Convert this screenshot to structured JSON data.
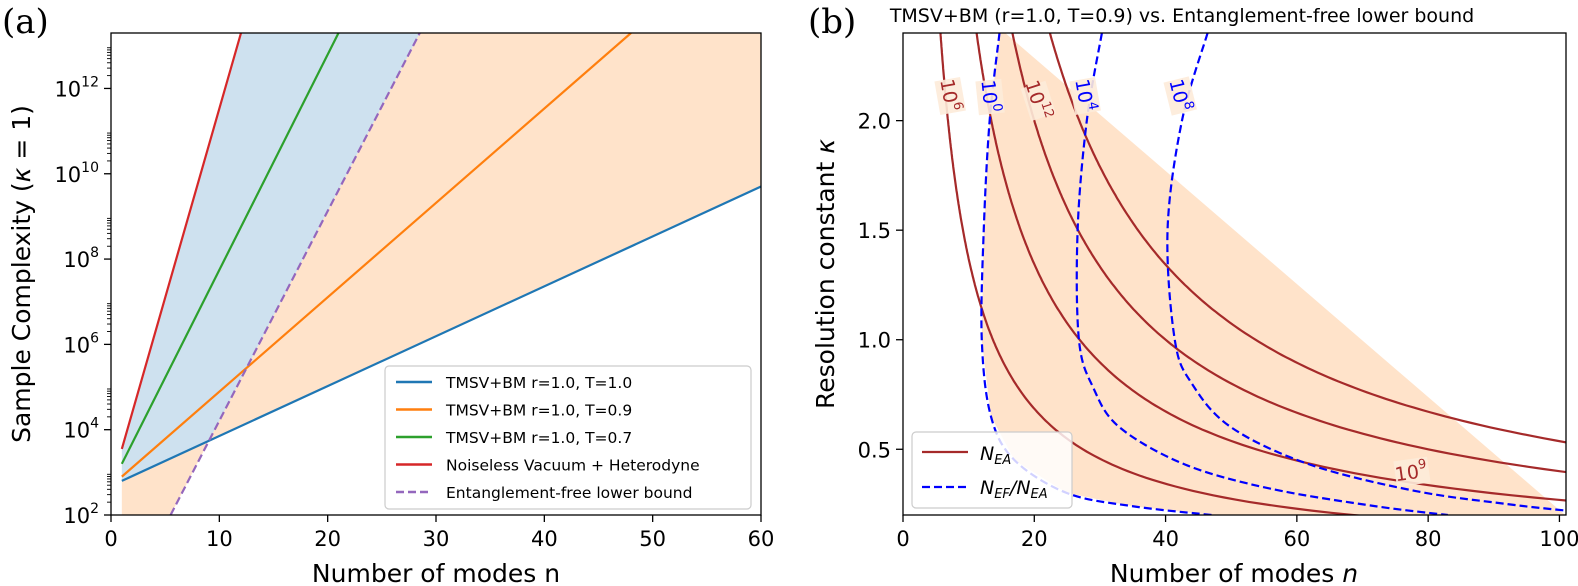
{
  "chart_data": [
    {
      "type": "line",
      "panel_label": "(a)",
      "title": "",
      "xlabel": "Number of modes n",
      "ylabel": "Sample Complexity (κ = 1)",
      "ylabel_main": "Sample Complexity (",
      "ylabel_kappa": "κ",
      "ylabel_tail": " = 1)",
      "yscale": "log",
      "xlim": [
        0,
        60
      ],
      "ylim_log10": [
        2,
        13.3
      ],
      "x_ticks": [
        0,
        10,
        20,
        30,
        40,
        50,
        60
      ],
      "x_tick_labels": [
        "0",
        "10",
        "20",
        "30",
        "40",
        "50",
        "60"
      ],
      "y_ticks_log10": [
        2,
        4,
        6,
        8,
        10,
        12
      ],
      "y_tick_base": "10",
      "y_tick_exps": [
        "2",
        "4",
        "6",
        "8",
        "10",
        "12"
      ],
      "series": [
        {
          "name": "TMSV+BM r=1.0, T=1.0",
          "color": "#1f77b4",
          "dash": false,
          "x": [
            1,
            60
          ],
          "log10_y": [
            2.8,
            9.7
          ]
        },
        {
          "name": "TMSV+BM r=1.0, T=0.9",
          "color": "#ff7f0e",
          "dash": false,
          "x": [
            1,
            48
          ],
          "log10_y": [
            2.9,
            13.3
          ]
        },
        {
          "name": "TMSV+BM r=1.0, T=0.7",
          "color": "#2ca02c",
          "dash": false,
          "x": [
            1,
            21
          ],
          "log10_y": [
            3.2,
            13.3
          ]
        },
        {
          "name": "Noiseless Vacuum + Heterodyne",
          "color": "#d62728",
          "dash": true,
          "x": [
            1,
            12
          ],
          "log10_y": [
            3.55,
            13.3
          ]
        },
        {
          "name": "Entanglement-free lower bound",
          "color": "#9467bd",
          "dash": true,
          "x": [
            5.5,
            28.5
          ],
          "log10_y": [
            2.0,
            13.3
          ]
        }
      ],
      "shaded_regions": [
        {
          "name": "entanglement-advantage region",
          "color": "#1f77b4",
          "opacity": 0.22
        },
        {
          "name": "entanglement-free region",
          "color": "#ff7f0e",
          "opacity": 0.22
        }
      ],
      "legend_position": "lower right"
    },
    {
      "type": "contour",
      "panel_label": "(b)",
      "title": "TMSV+BM (r=1.0, T=0.9) vs. Entanglement-free lower bound",
      "xlabel": "Number of modes n",
      "xlabel_main": "Number of modes ",
      "xlabel_var": "n",
      "ylabel": "Resolution constant κ",
      "ylabel_main": "Resolution constant ",
      "ylabel_var": "κ",
      "xlim": [
        0,
        101
      ],
      "ylim": [
        0.2,
        2.4
      ],
      "x_ticks": [
        0,
        20,
        40,
        60,
        80,
        100
      ],
      "x_tick_labels": [
        "0",
        "20",
        "40",
        "60",
        "80",
        "100"
      ],
      "y_ticks": [
        0.5,
        1.0,
        1.5,
        2.0
      ],
      "y_tick_labels": [
        "0.5",
        "1.0",
        "1.5",
        "2.0"
      ],
      "solid_contours": {
        "label": "N_EA",
        "color": "#a52a2a",
        "levels": [
          {
            "exponent": "6",
            "n_times_kappa": 13.7,
            "level_label": "10^6"
          },
          {
            "exponent": "9",
            "n_times_kappa": 26.9,
            "level_label": "10^9"
          },
          {
            "exponent": "12",
            "n_times_kappa": 40.0,
            "level_label": "10^12"
          },
          {
            "exponent": "15",
            "n_times_kappa": 53.7,
            "level_label": ""
          }
        ]
      },
      "dashed_contours": {
        "label": "N_EF/N_EA",
        "color": "#0000ff",
        "levels": [
          {
            "exponent": "0",
            "points": [
              [
                14.7,
                2.4
              ],
              [
                13.2,
                2.0
              ],
              [
                12.3,
                1.5
              ],
              [
                12.0,
                1.0
              ],
              [
                13.4,
                0.65
              ],
              [
                17.0,
                0.45
              ],
              [
                25.0,
                0.3
              ],
              [
                35.0,
                0.24
              ],
              [
                47.0,
                0.2
              ]
            ]
          },
          {
            "exponent": "4",
            "points": [
              [
                30.3,
                2.4
              ],
              [
                28.0,
                2.0
              ],
              [
                26.6,
                1.5
              ],
              [
                26.8,
                1.0
              ],
              [
                29.0,
                0.78
              ],
              [
                33.0,
                0.6
              ],
              [
                43.0,
                0.43
              ],
              [
                56.0,
                0.32
              ],
              [
                72.0,
                0.24
              ],
              [
                83.0,
                0.2
              ]
            ]
          },
          {
            "exponent": "8",
            "points": [
              [
                46.4,
                2.4
              ],
              [
                42.5,
                2.0
              ],
              [
                40.3,
                1.5
              ],
              [
                41.4,
                1.0
              ],
              [
                44.0,
                0.8
              ],
              [
                50.0,
                0.6
              ],
              [
                62.0,
                0.43
              ],
              [
                78.0,
                0.31
              ],
              [
                92.0,
                0.25
              ],
              [
                101.0,
                0.22
              ]
            ]
          }
        ]
      },
      "shaded_regions": [
        {
          "name": "entanglement-advantage region",
          "color": "#ff7f0e",
          "opacity": 0.22
        }
      ],
      "legend_entries": [
        {
          "base": "N",
          "sub": "EA"
        },
        {
          "base": "N",
          "sub": "EF",
          "slash": "/",
          "base2": "N",
          "sub2": "EA"
        }
      ],
      "legend_position": "lower left"
    }
  ]
}
